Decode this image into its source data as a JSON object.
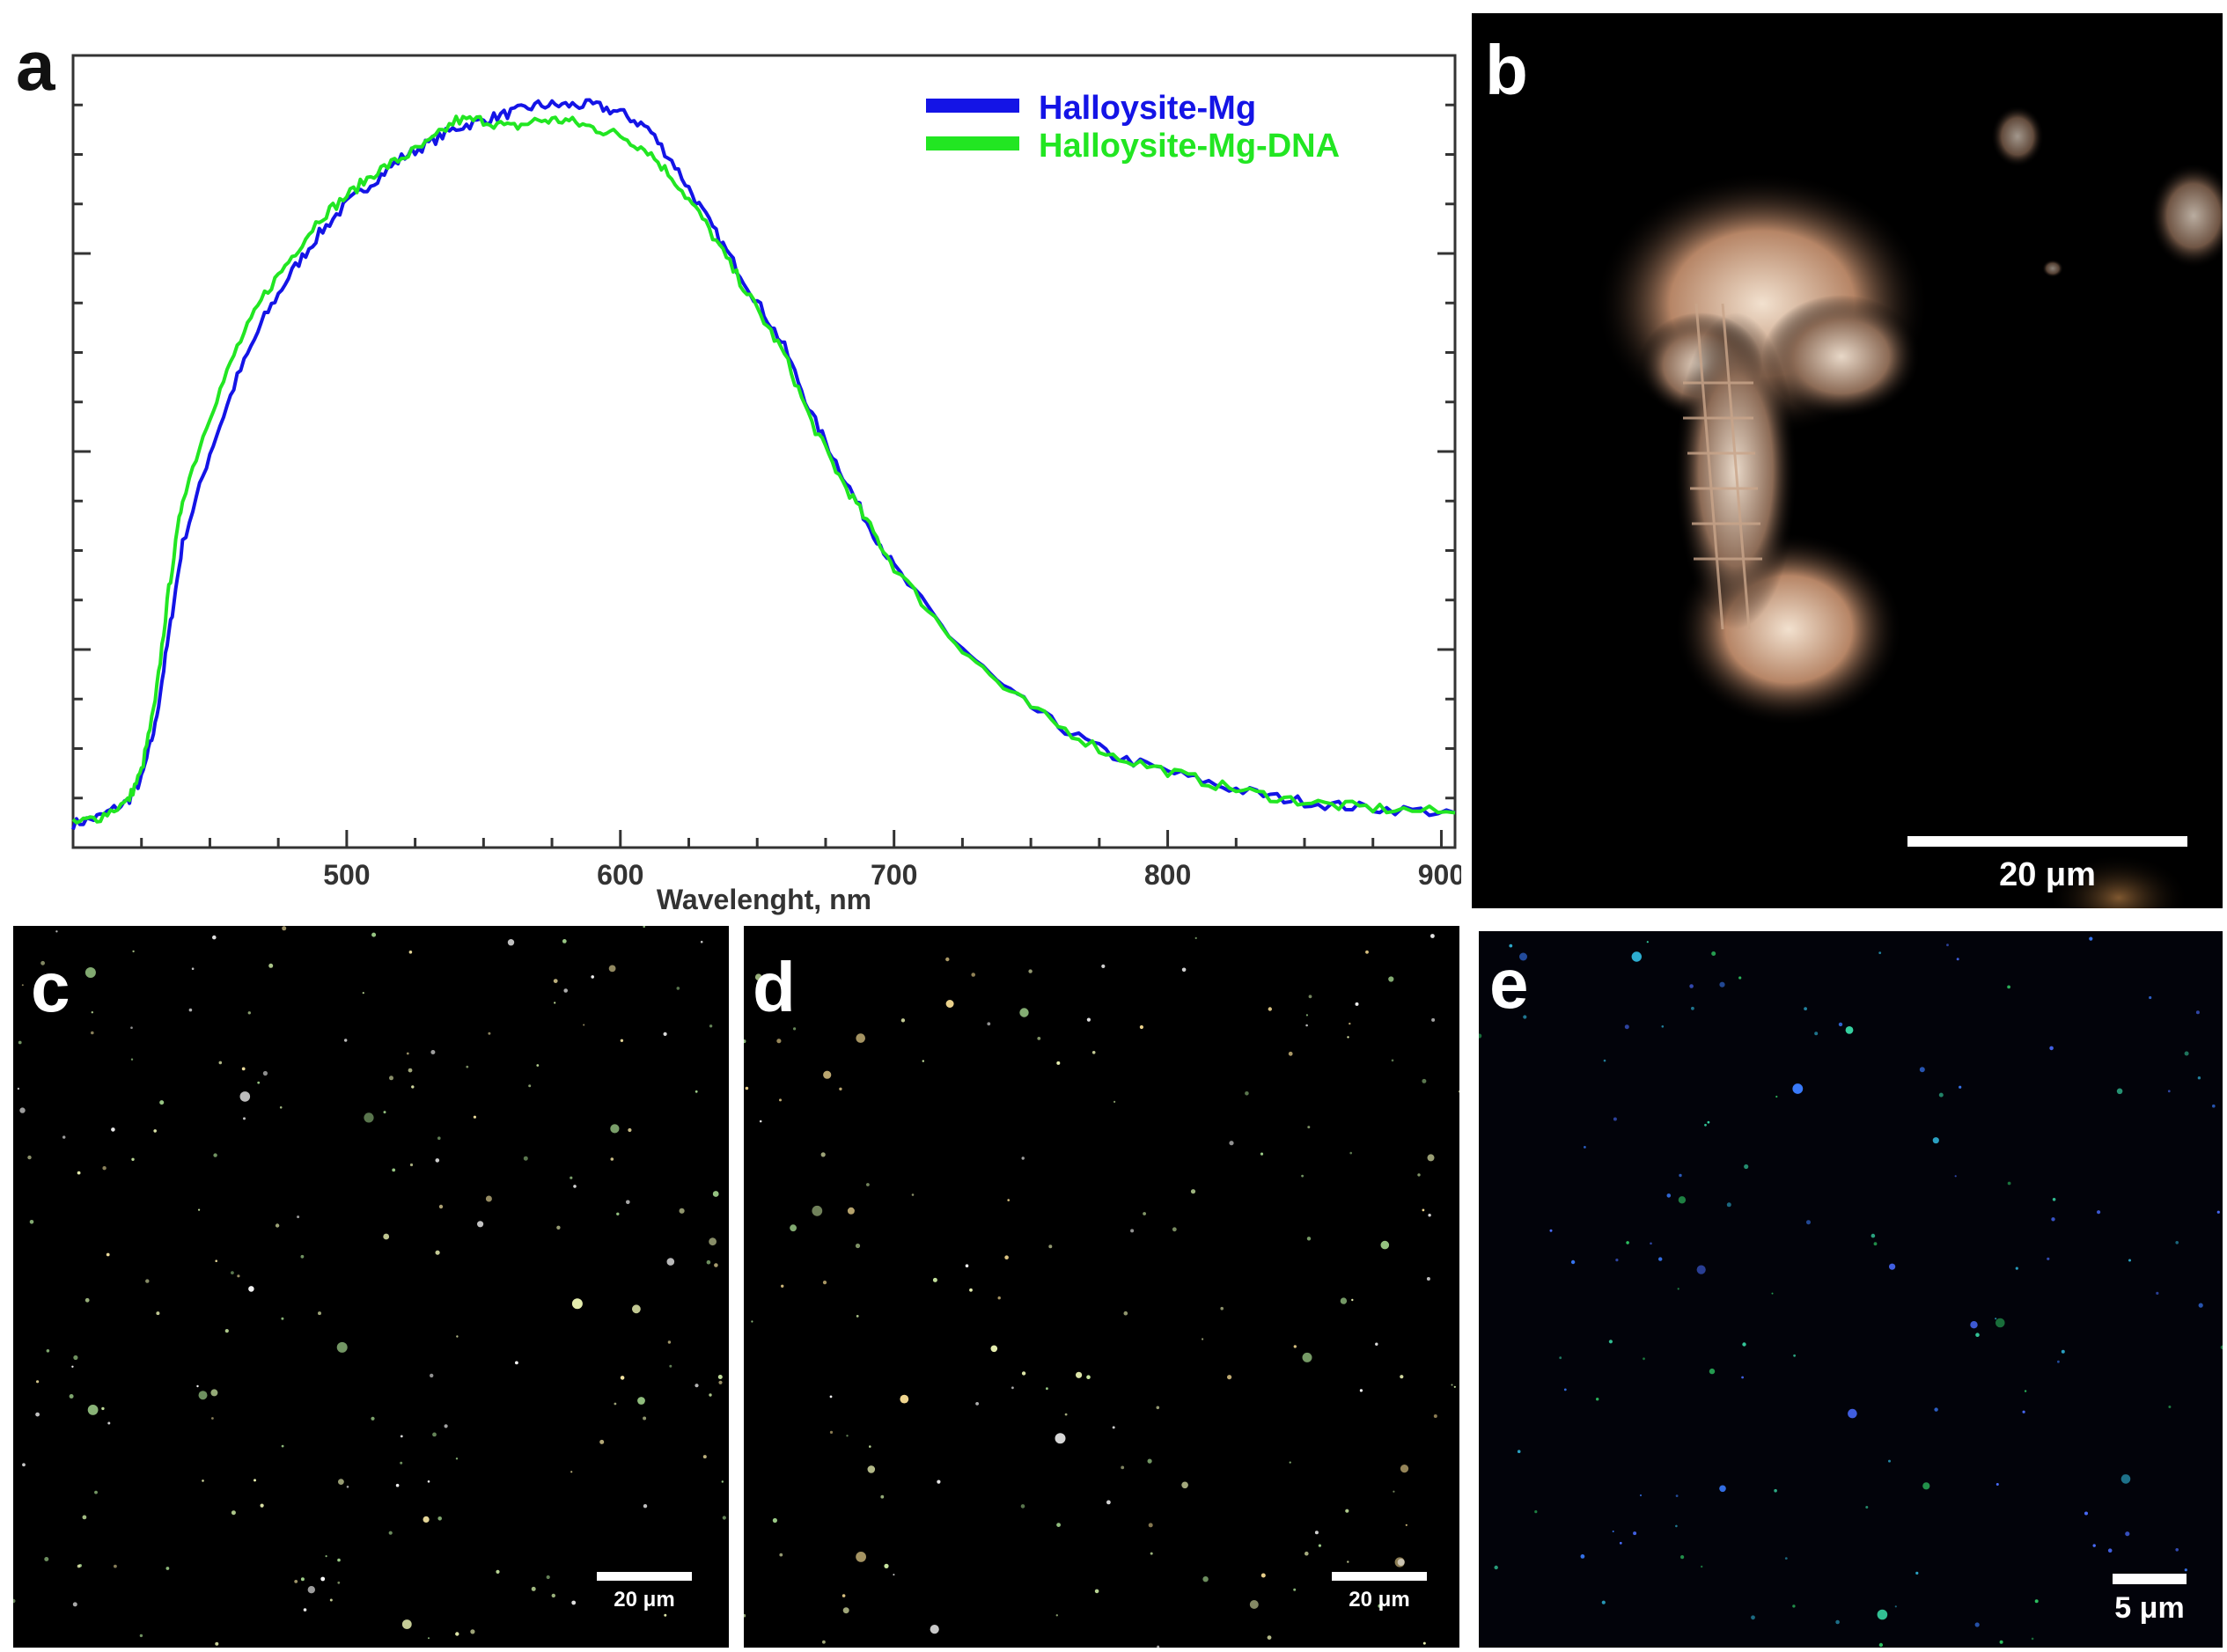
{
  "panels": {
    "a": {
      "label": "a"
    },
    "b": {
      "label": "b",
      "scale_label": "20 μm"
    },
    "c": {
      "label": "c",
      "scale_label": "20 μm"
    },
    "d": {
      "label": "d",
      "scale_label": "20 μm"
    },
    "e": {
      "label": "e",
      "scale_label": "5 μm"
    }
  },
  "chart_data": {
    "type": "line",
    "title": "",
    "xlabel": "Wavelenght, nm",
    "ylabel": "",
    "xlim": [
      400,
      905
    ],
    "ylim": [
      0,
      1.0
    ],
    "xticks": [
      500,
      600,
      700,
      800,
      900
    ],
    "yticks_shown": false,
    "grid": false,
    "legend_position": "top-right",
    "series": [
      {
        "name": "Halloysite-Mg",
        "color": "#1414e6",
        "x": [
          400,
          410,
          420,
          425,
          430,
          435,
          440,
          450,
          460,
          470,
          480,
          490,
          500,
          510,
          520,
          530,
          540,
          550,
          560,
          570,
          580,
          590,
          600,
          610,
          620,
          630,
          640,
          650,
          660,
          670,
          680,
          690,
          700,
          720,
          740,
          760,
          780,
          800,
          820,
          840,
          860,
          880,
          905
        ],
        "y": [
          0.01,
          0.02,
          0.04,
          0.07,
          0.14,
          0.26,
          0.38,
          0.5,
          0.6,
          0.68,
          0.74,
          0.79,
          0.83,
          0.86,
          0.89,
          0.91,
          0.93,
          0.94,
          0.95,
          0.96,
          0.96,
          0.96,
          0.95,
          0.93,
          0.88,
          0.82,
          0.76,
          0.7,
          0.64,
          0.55,
          0.48,
          0.41,
          0.35,
          0.26,
          0.19,
          0.14,
          0.1,
          0.08,
          0.06,
          0.045,
          0.035,
          0.03,
          0.025
        ]
      },
      {
        "name": "Halloysite-Mg-DNA",
        "color": "#22e622",
        "x": [
          400,
          410,
          420,
          425,
          430,
          435,
          440,
          450,
          460,
          470,
          480,
          490,
          500,
          510,
          520,
          530,
          540,
          550,
          560,
          570,
          580,
          590,
          600,
          610,
          620,
          630,
          640,
          650,
          660,
          670,
          680,
          690,
          700,
          720,
          740,
          760,
          780,
          800,
          820,
          840,
          860,
          880,
          905
        ],
        "y": [
          0.01,
          0.02,
          0.04,
          0.08,
          0.17,
          0.32,
          0.44,
          0.55,
          0.64,
          0.71,
          0.76,
          0.81,
          0.84,
          0.87,
          0.89,
          0.91,
          0.94,
          0.94,
          0.93,
          0.94,
          0.94,
          0.93,
          0.92,
          0.9,
          0.86,
          0.81,
          0.75,
          0.69,
          0.63,
          0.54,
          0.47,
          0.41,
          0.35,
          0.26,
          0.19,
          0.14,
          0.1,
          0.08,
          0.06,
          0.045,
          0.035,
          0.03,
          0.025
        ]
      }
    ]
  }
}
